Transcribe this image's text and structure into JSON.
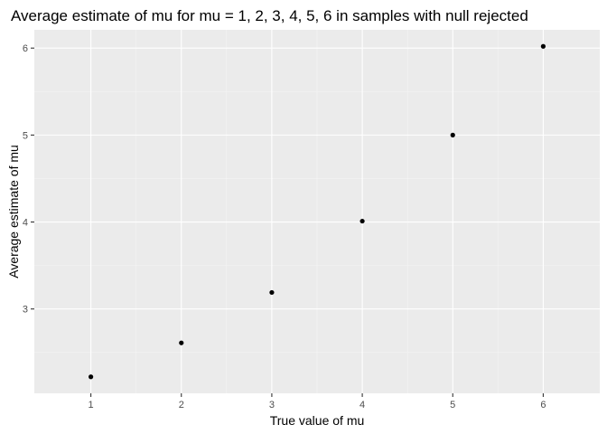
{
  "chart_data": {
    "type": "scatter",
    "title": "Average estimate of mu for mu = 1, 2, 3, 4, 5, 6 in samples with null rejected",
    "xlabel": "True value of mu",
    "ylabel": "Average estimate of mu",
    "x": [
      1,
      2,
      3,
      4,
      5,
      6
    ],
    "y": [
      2.22,
      2.61,
      3.19,
      4.01,
      5.0,
      6.02
    ],
    "xlim": [
      0.375,
      6.625
    ],
    "ylim": [
      2.03,
      6.21
    ],
    "x_ticks": [
      1,
      2,
      3,
      4,
      5,
      6
    ],
    "x_tick_labels": [
      "1",
      "2",
      "3",
      "4",
      "5",
      "6"
    ],
    "y_ticks": [
      3,
      4,
      5,
      6
    ],
    "y_tick_labels": [
      "3",
      "4",
      "5",
      "6"
    ],
    "grid": true,
    "legend": "none",
    "colors": {
      "panel_background": "#ebebeb",
      "grid_major": "#ffffff",
      "grid_minor": "#f5f5f5",
      "point": "#000000",
      "tick": "#333333",
      "tick_label": "#4d4d4d"
    }
  }
}
